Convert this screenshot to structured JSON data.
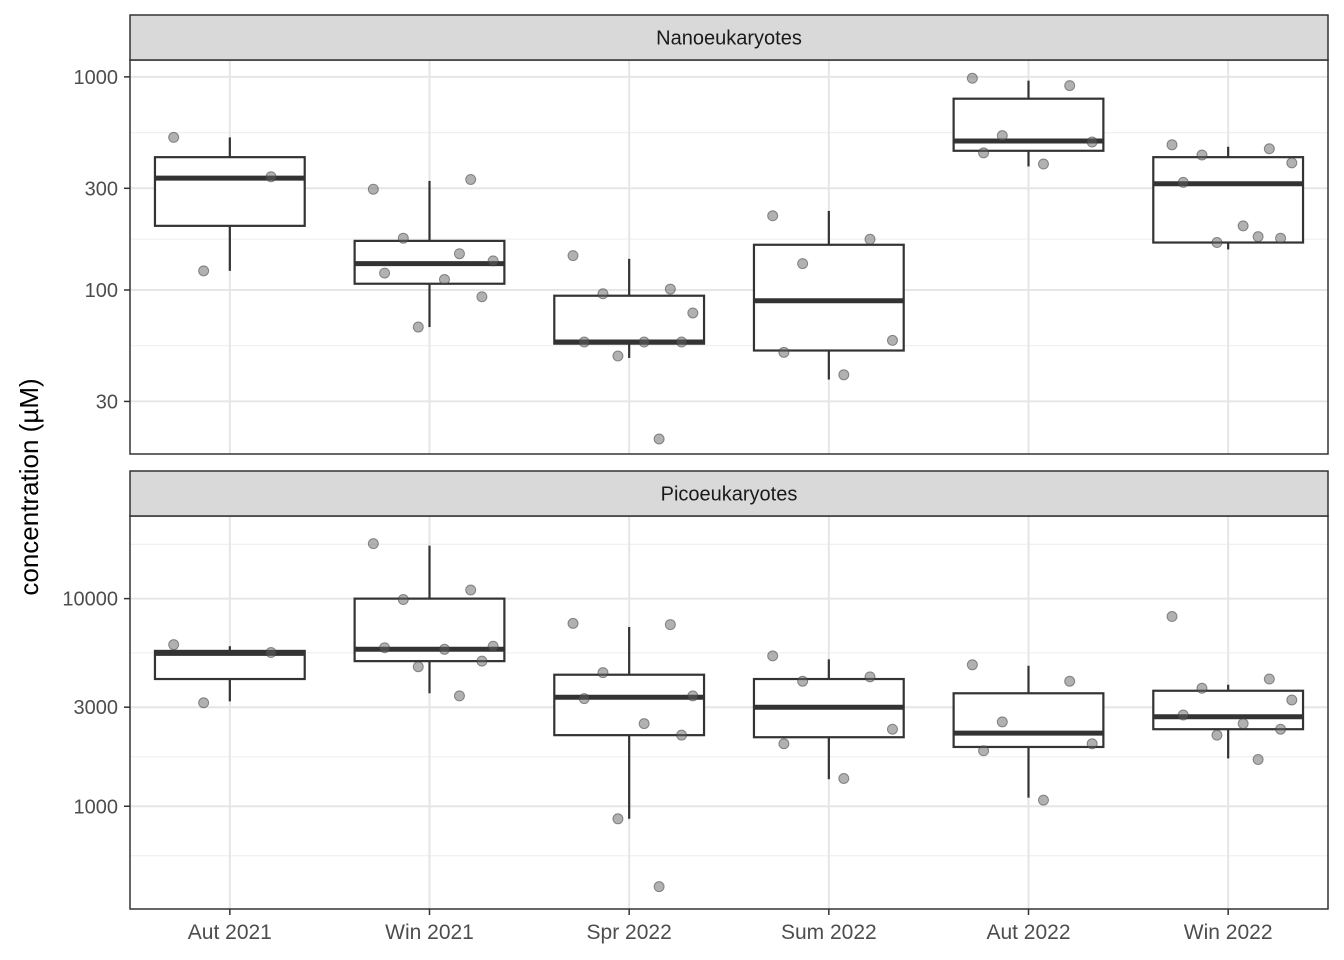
{
  "chart_data": {
    "type": "box",
    "ylabel": "concentration (µM)",
    "xlabel": "",
    "y_scale": "log10",
    "categories": [
      "Aut 2021",
      "Win 2021",
      "Spr 2022",
      "Sum 2022",
      "Aut 2022",
      "Win 2022"
    ],
    "panels": [
      {
        "title": "Nanoeukaryotes",
        "ylim": [
          17,
          1200
        ],
        "yticks": [
          30,
          100,
          300,
          1000
        ],
        "ytick_labels": [
          "30",
          "100",
          "300",
          "1000"
        ],
        "boxes": [
          {
            "category": "Aut 2021",
            "q1": 200,
            "median": 335,
            "q3": 420,
            "whisker_low": 123,
            "whisker_high": 520
          },
          {
            "category": "Win 2021",
            "q1": 107,
            "median": 133,
            "q3": 170,
            "whisker_low": 67,
            "whisker_high": 325
          },
          {
            "category": "Spr 2022",
            "q1": 56,
            "median": 57,
            "q3": 94,
            "whisker_low": 48,
            "whisker_high": 140
          },
          {
            "category": "Sum 2022",
            "q1": 52,
            "median": 89,
            "q3": 163,
            "whisker_low": 38,
            "whisker_high": 235
          },
          {
            "category": "Aut 2022",
            "q1": 450,
            "median": 500,
            "q3": 790,
            "whisker_low": 380,
            "whisker_high": 960
          },
          {
            "category": "Win 2022",
            "q1": 167,
            "median": 315,
            "q3": 420,
            "whisker_low": 155,
            "whisker_high": 470
          }
        ],
        "points": [
          {
            "category": "Aut 2021",
            "values": [
              520,
              340,
              123
            ]
          },
          {
            "category": "Win 2021",
            "values": [
              297,
              330,
              175,
              137,
              120,
              112,
              93,
              67,
              148
            ]
          },
          {
            "category": "Spr 2022",
            "values": [
              145,
              101,
              96,
              78,
              57,
              57,
              57,
              49,
              20
            ]
          },
          {
            "category": "Sum 2022",
            "values": [
              223,
              173,
              133,
              58,
              51,
              40
            ]
          },
          {
            "category": "Aut 2022",
            "values": [
              985,
              910,
              530,
              495,
              440,
              390
            ]
          },
          {
            "category": "Win 2022",
            "values": [
              480,
              460,
              430,
              395,
              320,
              200,
              175,
              167,
              178
            ]
          }
        ]
      },
      {
        "title": "Picoeukaryotes",
        "ylim": [
          320,
          25000
        ],
        "yticks": [
          1000,
          3000,
          10000
        ],
        "ytick_labels": [
          "1000",
          "3000",
          "10000"
        ],
        "boxes": [
          {
            "category": "Aut 2021",
            "q1": 4100,
            "median": 5450,
            "q3": 5600,
            "whisker_low": 3200,
            "whisker_high": 5900
          },
          {
            "category": "Win 2021",
            "q1": 5000,
            "median": 5700,
            "q3": 10000,
            "whisker_low": 3500,
            "whisker_high": 18000
          },
          {
            "category": "Spr 2022",
            "q1": 2200,
            "median": 3350,
            "q3": 4300,
            "whisker_low": 870,
            "whisker_high": 7300
          },
          {
            "category": "Sum 2022",
            "q1": 2150,
            "median": 3000,
            "q3": 4100,
            "whisker_low": 1350,
            "whisker_high": 5100
          },
          {
            "category": "Aut 2022",
            "q1": 1930,
            "median": 2250,
            "q3": 3500,
            "whisker_low": 1100,
            "whisker_high": 4750
          },
          {
            "category": "Win 2022",
            "q1": 2350,
            "median": 2700,
            "q3": 3600,
            "whisker_low": 1700,
            "whisker_high": 3850
          }
        ],
        "points": [
          {
            "category": "Aut 2021",
            "values": [
              6000,
              5500,
              3150
            ]
          },
          {
            "category": "Win 2021",
            "values": [
              18400,
              11000,
              9900,
              5900,
              5800,
              5700,
              5000,
              4700,
              3400
            ]
          },
          {
            "category": "Spr 2022",
            "values": [
              7600,
              7500,
              4400,
              3400,
              3300,
              2500,
              2200,
              870,
              410
            ]
          },
          {
            "category": "Sum 2022",
            "values": [
              5300,
              4200,
              4000,
              2350,
              2000,
              1360
            ]
          },
          {
            "category": "Aut 2022",
            "values": [
              4800,
              4000,
              2550,
              2000,
              1850,
              1070
            ]
          },
          {
            "category": "Win 2022",
            "values": [
              8200,
              4100,
              3700,
              3250,
              2750,
              2500,
              2350,
              2200,
              1680
            ]
          }
        ]
      }
    ]
  }
}
